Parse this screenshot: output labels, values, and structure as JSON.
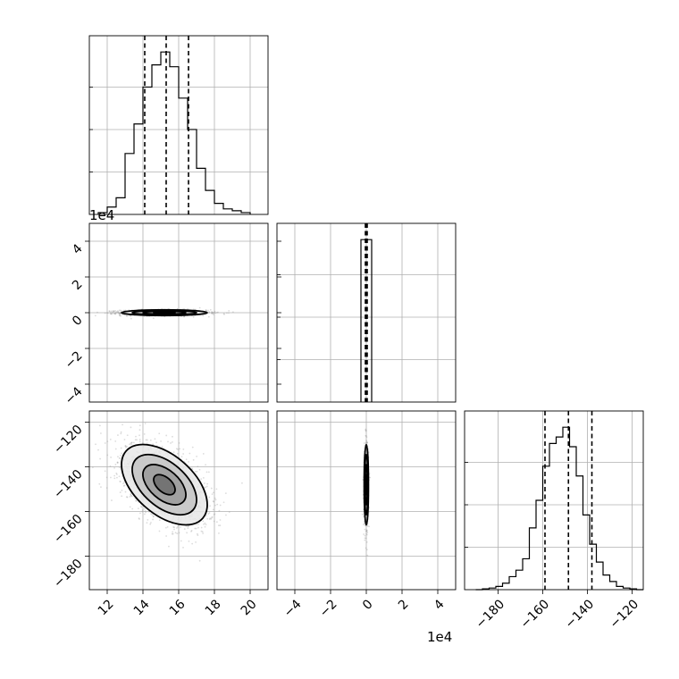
{
  "chart_data": {
    "type": "corner",
    "grid": true,
    "colors": {
      "line": "#000000",
      "grid": "#b0b0b0",
      "scatter": "#9a9a9a"
    },
    "params": [
      {
        "name": "",
        "range": [
          11,
          21
        ],
        "ticks": [
          12,
          14,
          16,
          18,
          20
        ],
        "tick_labels": [
          "12",
          "14",
          "16",
          "18",
          "20"
        ],
        "offset_text": ""
      },
      {
        "name": "",
        "range": [
          -5,
          5
        ],
        "ticks": [
          -4,
          -2,
          0,
          2,
          4
        ],
        "tick_labels": [
          "−4",
          "−2",
          "0",
          "2",
          "4"
        ],
        "offset_text": "1e4"
      },
      {
        "name": "",
        "range": [
          -195,
          -115
        ],
        "ticks": [
          -180,
          -160,
          -140,
          -120
        ],
        "tick_labels": [
          "−180",
          "−160",
          "−140",
          "−120"
        ],
        "offset_text": ""
      }
    ],
    "diagonal": [
      {
        "param_index": 0,
        "bin_edges": [
          11.5,
          12.0,
          12.5,
          13.0,
          13.5,
          14.0,
          14.5,
          15.0,
          15.5,
          16.0,
          16.5,
          17.0,
          17.5,
          18.0,
          18.5,
          19.0,
          19.5,
          20.0
        ],
        "counts": [
          0.01,
          0.04,
          0.09,
          0.33,
          0.49,
          0.69,
          0.81,
          0.88,
          0.8,
          0.63,
          0.46,
          0.25,
          0.13,
          0.06,
          0.03,
          0.02,
          0.01
        ],
        "quantiles": [
          14.1,
          15.3,
          16.55
        ]
      },
      {
        "param_index": 1,
        "bin_edges": [
          -0.3,
          0.3
        ],
        "counts": [
          1.0
        ],
        "quantiles": [
          -0.05,
          0.0,
          0.05
        ]
      },
      {
        "param_index": 2,
        "bin_edges": [
          -190,
          -187,
          -184,
          -181,
          -178,
          -175,
          -172,
          -169,
          -166,
          -163,
          -160,
          -157,
          -154,
          -151,
          -148,
          -145,
          -142,
          -139,
          -136,
          -133,
          -130,
          -127,
          -124,
          -121,
          -118,
          -115
        ],
        "counts": [
          0.0,
          0.005,
          0.01,
          0.02,
          0.04,
          0.08,
          0.12,
          0.19,
          0.38,
          0.55,
          0.76,
          0.9,
          0.94,
          1.0,
          0.88,
          0.7,
          0.46,
          0.28,
          0.17,
          0.09,
          0.05,
          0.02,
          0.01,
          0.005,
          0.0
        ],
        "quantiles": [
          -159,
          -148.5,
          -138
        ]
      }
    ],
    "pairs": [
      {
        "x": 0,
        "y": 1,
        "center": [
          15.2,
          0.0
        ],
        "sigma": [
          1.2,
          0.08
        ],
        "corr": 0.0,
        "n_points": 1500
      },
      {
        "x": 0,
        "y": 2,
        "center": [
          15.2,
          -148
        ],
        "sigma": [
          1.2,
          9.0
        ],
        "corr": -0.5,
        "n_points": 1800
      },
      {
        "x": 1,
        "y": 2,
        "center": [
          0.0,
          -148
        ],
        "sigma": [
          0.06,
          9.0
        ],
        "corr": 0.0,
        "n_points": 900
      }
    ],
    "contour_levels_sigma": [
      0.5,
      1.0,
      1.5,
      2.0
    ]
  }
}
